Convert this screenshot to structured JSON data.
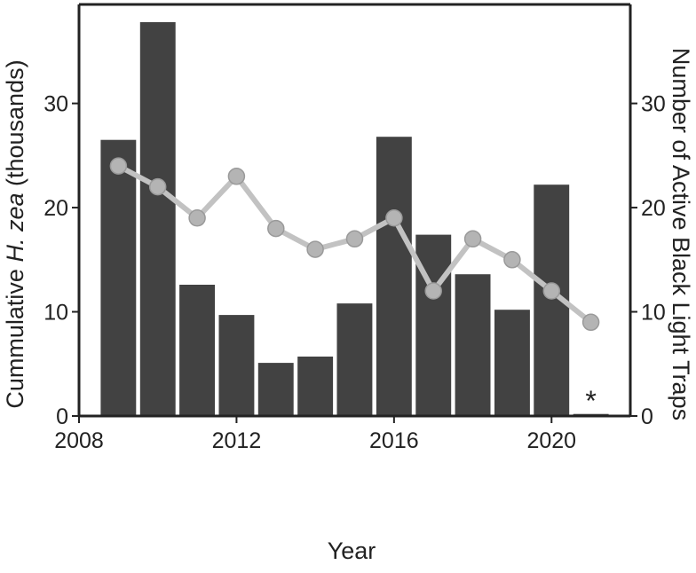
{
  "chart_data": {
    "type": "bar",
    "x": [
      2009,
      2010,
      2011,
      2012,
      2013,
      2014,
      2015,
      2016,
      2017,
      2018,
      2019,
      2020,
      2021
    ],
    "series": [
      {
        "kind": "bar",
        "axis": "left",
        "values": [
          26.5,
          37.8,
          12.6,
          9.7,
          5.1,
          5.7,
          10.8,
          26.8,
          17.4,
          13.6,
          10.2,
          22.2,
          0.2
        ]
      },
      {
        "kind": "line",
        "axis": "right",
        "values": [
          24,
          22,
          19,
          23,
          18,
          16,
          17,
          19,
          12,
          17,
          15,
          12,
          9
        ]
      }
    ],
    "xlabel": "Year",
    "ylabel_left_prefix": "Cummulative ",
    "ylabel_left_italic": "H. zea",
    "ylabel_left_suffix": " (thousands)",
    "ylabel_right": "Number of Active Black Light Traps",
    "x_ticks": [
      "2008",
      "2012",
      "2016",
      "2020"
    ],
    "y_left_ticks": [
      "0",
      "10",
      "20",
      "30"
    ],
    "y_right_ticks": [
      "0",
      "10",
      "20",
      "30"
    ],
    "xlim": [
      2008,
      2022
    ],
    "ylim_left": [
      0,
      39.5
    ],
    "ylim_right": [
      0,
      39.5
    ],
    "annotation": {
      "text": "*",
      "x": 2021
    },
    "bar_color": "#424242",
    "line_color": "#c2c2c2",
    "marker_fill": "#b4b4b4",
    "marker_stroke": "#9a9a9a",
    "grid": false
  }
}
